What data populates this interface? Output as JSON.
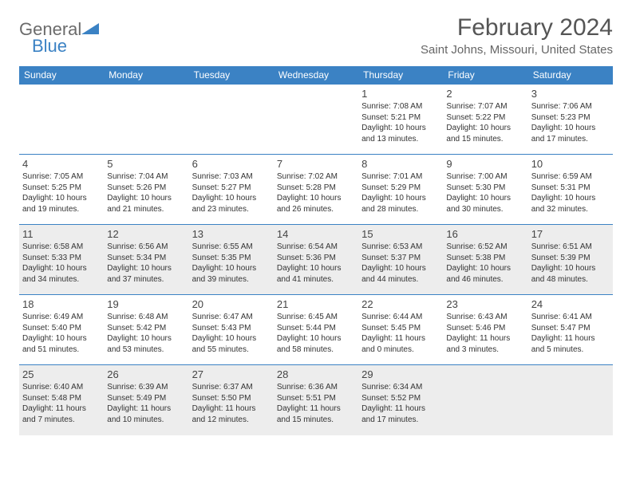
{
  "logo": {
    "text_general": "General",
    "text_blue": "Blue"
  },
  "title": "February 2024",
  "location": "Saint Johns, Missouri, United States",
  "colors": {
    "header_bg": "#3b82c4",
    "header_text": "#ffffff",
    "border": "#3b82c4",
    "shaded_bg": "#ededed",
    "body_text": "#333333"
  },
  "day_names": [
    "Sunday",
    "Monday",
    "Tuesday",
    "Wednesday",
    "Thursday",
    "Friday",
    "Saturday"
  ],
  "weeks": [
    {
      "shaded": false,
      "days": [
        null,
        null,
        null,
        null,
        {
          "n": "1",
          "sunrise": "7:08 AM",
          "sunset": "5:21 PM",
          "daylight": "10 hours and 13 minutes."
        },
        {
          "n": "2",
          "sunrise": "7:07 AM",
          "sunset": "5:22 PM",
          "daylight": "10 hours and 15 minutes."
        },
        {
          "n": "3",
          "sunrise": "7:06 AM",
          "sunset": "5:23 PM",
          "daylight": "10 hours and 17 minutes."
        }
      ]
    },
    {
      "shaded": false,
      "days": [
        {
          "n": "4",
          "sunrise": "7:05 AM",
          "sunset": "5:25 PM",
          "daylight": "10 hours and 19 minutes."
        },
        {
          "n": "5",
          "sunrise": "7:04 AM",
          "sunset": "5:26 PM",
          "daylight": "10 hours and 21 minutes."
        },
        {
          "n": "6",
          "sunrise": "7:03 AM",
          "sunset": "5:27 PM",
          "daylight": "10 hours and 23 minutes."
        },
        {
          "n": "7",
          "sunrise": "7:02 AM",
          "sunset": "5:28 PM",
          "daylight": "10 hours and 26 minutes."
        },
        {
          "n": "8",
          "sunrise": "7:01 AM",
          "sunset": "5:29 PM",
          "daylight": "10 hours and 28 minutes."
        },
        {
          "n": "9",
          "sunrise": "7:00 AM",
          "sunset": "5:30 PM",
          "daylight": "10 hours and 30 minutes."
        },
        {
          "n": "10",
          "sunrise": "6:59 AM",
          "sunset": "5:31 PM",
          "daylight": "10 hours and 32 minutes."
        }
      ]
    },
    {
      "shaded": true,
      "days": [
        {
          "n": "11",
          "sunrise": "6:58 AM",
          "sunset": "5:33 PM",
          "daylight": "10 hours and 34 minutes."
        },
        {
          "n": "12",
          "sunrise": "6:56 AM",
          "sunset": "5:34 PM",
          "daylight": "10 hours and 37 minutes."
        },
        {
          "n": "13",
          "sunrise": "6:55 AM",
          "sunset": "5:35 PM",
          "daylight": "10 hours and 39 minutes."
        },
        {
          "n": "14",
          "sunrise": "6:54 AM",
          "sunset": "5:36 PM",
          "daylight": "10 hours and 41 minutes."
        },
        {
          "n": "15",
          "sunrise": "6:53 AM",
          "sunset": "5:37 PM",
          "daylight": "10 hours and 44 minutes."
        },
        {
          "n": "16",
          "sunrise": "6:52 AM",
          "sunset": "5:38 PM",
          "daylight": "10 hours and 46 minutes."
        },
        {
          "n": "17",
          "sunrise": "6:51 AM",
          "sunset": "5:39 PM",
          "daylight": "10 hours and 48 minutes."
        }
      ]
    },
    {
      "shaded": false,
      "days": [
        {
          "n": "18",
          "sunrise": "6:49 AM",
          "sunset": "5:40 PM",
          "daylight": "10 hours and 51 minutes."
        },
        {
          "n": "19",
          "sunrise": "6:48 AM",
          "sunset": "5:42 PM",
          "daylight": "10 hours and 53 minutes."
        },
        {
          "n": "20",
          "sunrise": "6:47 AM",
          "sunset": "5:43 PM",
          "daylight": "10 hours and 55 minutes."
        },
        {
          "n": "21",
          "sunrise": "6:45 AM",
          "sunset": "5:44 PM",
          "daylight": "10 hours and 58 minutes."
        },
        {
          "n": "22",
          "sunrise": "6:44 AM",
          "sunset": "5:45 PM",
          "daylight": "11 hours and 0 minutes."
        },
        {
          "n": "23",
          "sunrise": "6:43 AM",
          "sunset": "5:46 PM",
          "daylight": "11 hours and 3 minutes."
        },
        {
          "n": "24",
          "sunrise": "6:41 AM",
          "sunset": "5:47 PM",
          "daylight": "11 hours and 5 minutes."
        }
      ]
    },
    {
      "shaded": true,
      "days": [
        {
          "n": "25",
          "sunrise": "6:40 AM",
          "sunset": "5:48 PM",
          "daylight": "11 hours and 7 minutes."
        },
        {
          "n": "26",
          "sunrise": "6:39 AM",
          "sunset": "5:49 PM",
          "daylight": "11 hours and 10 minutes."
        },
        {
          "n": "27",
          "sunrise": "6:37 AM",
          "sunset": "5:50 PM",
          "daylight": "11 hours and 12 minutes."
        },
        {
          "n": "28",
          "sunrise": "6:36 AM",
          "sunset": "5:51 PM",
          "daylight": "11 hours and 15 minutes."
        },
        {
          "n": "29",
          "sunrise": "6:34 AM",
          "sunset": "5:52 PM",
          "daylight": "11 hours and 17 minutes."
        },
        null,
        null
      ]
    }
  ],
  "labels": {
    "sunrise": "Sunrise: ",
    "sunset": "Sunset: ",
    "daylight": "Daylight: "
  }
}
